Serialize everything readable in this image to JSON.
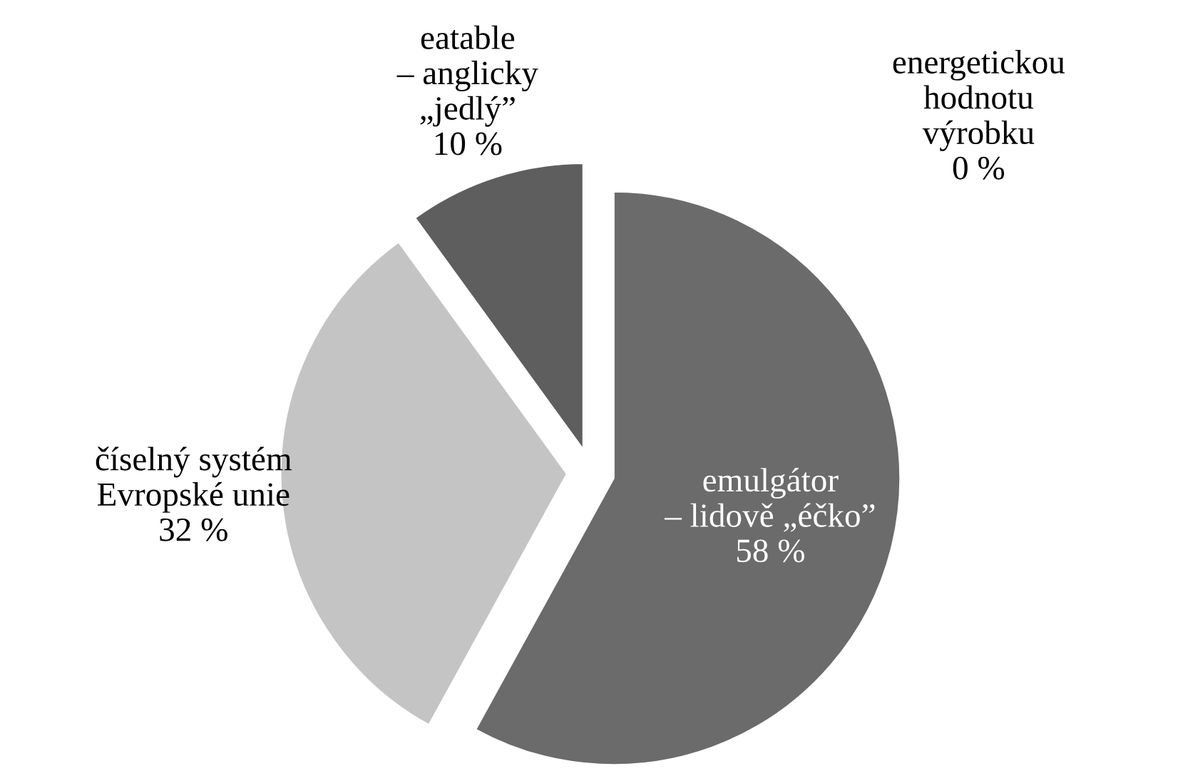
{
  "chart_data": {
    "type": "pie",
    "categories": [
      "energetickou\nhodnotu\nvýrobku",
      "emulgátor\n– lidově „éčko”",
      "číselný systém\nEvropské unie",
      "eatable\n– anglicky\n„jedlý”"
    ],
    "values": [
      0,
      58,
      32,
      10
    ],
    "value_labels": [
      "0 %",
      "58 %",
      "32 %",
      "10 %"
    ],
    "colors": [
      "#7f7f7f",
      "#6b6b6b",
      "#c4c4c4",
      "#5e5e5e"
    ],
    "legend": false
  }
}
